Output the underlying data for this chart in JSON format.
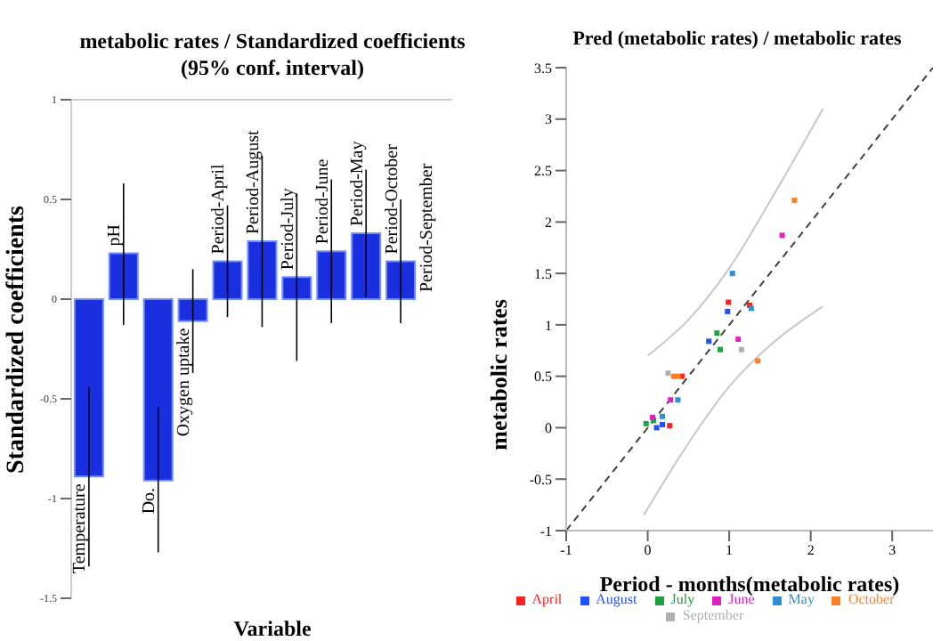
{
  "chart_data": [
    {
      "type": "bar",
      "title": "metabolic rates / Standardized coefficients",
      "subtitle": "(95% conf. interval)",
      "xlabel": "Variable",
      "ylabel": "Standardized coefficients",
      "categories": [
        "Temperature",
        "pH",
        "Do.",
        "Oxygen uptake",
        "Period-April",
        "Period-August",
        "Period-July",
        "Period-June",
        "Period-May",
        "Period-October",
        "Period-September"
      ],
      "values": [
        -0.89,
        0.23,
        -0.91,
        -0.11,
        0.19,
        0.29,
        0.11,
        0.24,
        0.33,
        0.19,
        0
      ],
      "errors": [
        [
          -1.34,
          -0.44
        ],
        [
          -0.13,
          0.58
        ],
        [
          -1.27,
          -0.54
        ],
        [
          -0.37,
          0.15
        ],
        [
          -0.09,
          0.47
        ],
        [
          -0.14,
          0.72
        ],
        [
          -0.31,
          0.53
        ],
        [
          -0.12,
          0.6
        ],
        [
          0.01,
          0.65
        ],
        [
          -0.12,
          0.5
        ],
        null
      ],
      "color": "#1a2fe0",
      "ylim": [
        -1.5,
        1
      ],
      "yticks": [
        -1.5,
        -1,
        -0.5,
        0,
        0.5,
        1
      ],
      "grid": false,
      "legend": false
    },
    {
      "type": "scatter",
      "title": "Pred (metabolic rates) / metabolic rates",
      "xlabel": "Period - months(metabolic rates)",
      "ylabel": "metabolic rates",
      "marker": "square",
      "grid": false,
      "legend": "bottom",
      "xlim": [
        -1,
        3.5
      ],
      "xticks": [
        -1,
        0,
        1,
        2,
        3
      ],
      "ylim": [
        -1,
        3.5
      ],
      "yticks": [
        -1,
        -0.5,
        0,
        0.5,
        1,
        1.5,
        2,
        2.5,
        3,
        3.5
      ],
      "series": [
        {
          "type": "line",
          "color": "#404040",
          "line_style": "dashed",
          "marker": "none",
          "x": [
            -1,
            3.5
          ],
          "values": [
            -1,
            3.5
          ]
        },
        {
          "type": "line",
          "color": "#c8c8c8",
          "line_style": "solid",
          "marker": "none",
          "x": [
            0,
            0.5,
            1,
            1.5,
            2.15
          ],
          "values": [
            0.7,
            1.05,
            1.55,
            2.2,
            3.1
          ]
        },
        {
          "type": "line",
          "color": "#c8c8c8",
          "line_style": "solid",
          "marker": "none",
          "x": [
            -0.05,
            0.5,
            1,
            1.5,
            2.15
          ],
          "values": [
            -0.85,
            -0.15,
            0.4,
            0.8,
            1.18
          ]
        },
        {
          "name": "April",
          "color": "#ff2020",
          "x": [
            0.99,
            1.25,
            0.42,
            0.27
          ],
          "values": [
            1.22,
            1.19,
            0.5,
            0.02
          ]
        },
        {
          "name": "August",
          "color": "#2050ff",
          "x": [
            0.98,
            0.75,
            0.11,
            0.18
          ],
          "values": [
            1.13,
            0.84,
            0,
            0.03
          ]
        },
        {
          "name": "July",
          "color": "#20a040",
          "x": [
            0.85,
            0.89,
            -0.02,
            0.07
          ],
          "values": [
            0.92,
            0.76,
            0.04,
            0.07
          ]
        },
        {
          "name": "June",
          "color": "#e020c0",
          "x": [
            1.65,
            1.11,
            0.28,
            0.06
          ],
          "values": [
            1.87,
            0.86,
            0.27,
            0.1
          ]
        },
        {
          "name": "May",
          "color": "#3090d0",
          "x": [
            1.04,
            1.27,
            0.37,
            0.18
          ],
          "values": [
            1.5,
            1.16,
            0.27,
            0.11
          ]
        },
        {
          "name": "October",
          "color": "#ff8020",
          "x": [
            1.8,
            1.35,
            0.32,
            0.37
          ],
          "values": [
            2.21,
            0.65,
            0.5,
            0.5
          ]
        },
        {
          "name": "September",
          "color": "#b0b0b0",
          "x": [
            0.25,
            1.15
          ],
          "values": [
            0.53,
            0.76
          ]
        }
      ]
    }
  ]
}
